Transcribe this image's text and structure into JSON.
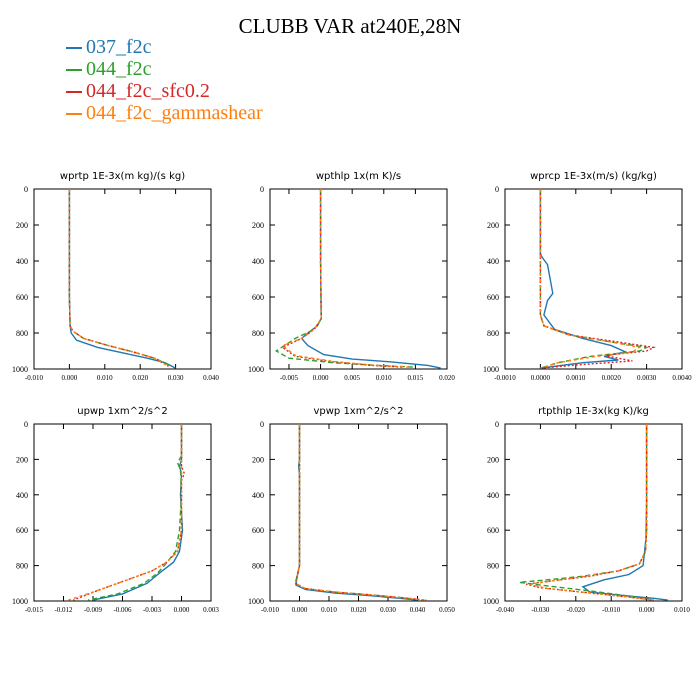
{
  "figure": {
    "title": "CLUBB VAR at240E,28N"
  },
  "legend": [
    {
      "label": "037_f2c",
      "color": "#1f77b4"
    },
    {
      "label": "044_f2c",
      "color": "#2ca02c"
    },
    {
      "label": "044_f2c_sfc0.2",
      "color": "#d62728"
    },
    {
      "label": "044_f2c_gammashear",
      "color": "#ff7f0e"
    }
  ],
  "chart_data": [
    {
      "type": "line",
      "title": "wprtp  1E-3x(m kg)/(s kg)",
      "xlim": [
        -0.01,
        0.04
      ],
      "ylim": [
        0,
        1000
      ],
      "y_inverted": true,
      "xticks": [
        "-0.010",
        "0.000",
        "0.010",
        "0.020",
        "0.030",
        "0.040"
      ],
      "xtick_values": [
        -0.01,
        0.0,
        0.01,
        0.02,
        0.03,
        0.04
      ],
      "yticks": [
        0,
        200,
        400,
        600,
        800,
        1000
      ],
      "series": [
        {
          "name": "037_f2c",
          "color": "#1f77b4",
          "dash": "",
          "x": [
            0,
            0,
            0.0002,
            0.0005,
            0.002,
            0.008,
            0.015,
            0.022,
            0.027,
            0.03
          ],
          "y": [
            0,
            600,
            760,
            800,
            840,
            880,
            910,
            940,
            965,
            995
          ]
        },
        {
          "name": "044_f2c",
          "color": "#2ca02c",
          "dash": "5,3",
          "x": [
            0,
            0,
            0.0002,
            0.001,
            0.004,
            0.011,
            0.018,
            0.024,
            0.029
          ],
          "y": [
            0,
            600,
            760,
            790,
            830,
            870,
            905,
            940,
            985
          ]
        },
        {
          "name": "044_f2c_sfc0.2",
          "color": "#d62728",
          "dash": "2,2",
          "x": [
            0,
            0,
            0.0002,
            0.001,
            0.004,
            0.011,
            0.018,
            0.024,
            0.028
          ],
          "y": [
            0,
            600,
            760,
            790,
            830,
            870,
            905,
            940,
            985
          ]
        },
        {
          "name": "044_f2c_gammashear",
          "color": "#ff7f0e",
          "dash": "3,3",
          "x": [
            0,
            0,
            0.0002,
            0.001,
            0.004,
            0.011,
            0.018,
            0.024,
            0.028
          ],
          "y": [
            0,
            600,
            760,
            790,
            830,
            870,
            905,
            940,
            985
          ]
        }
      ]
    },
    {
      "type": "line",
      "title": "wpthlp  1x(m K)/s",
      "xlim": [
        -0.008,
        0.02
      ],
      "ylim": [
        0,
        1000
      ],
      "y_inverted": true,
      "xticks": [
        "-0.005",
        "0.000",
        "0.005",
        "0.010",
        "0.015",
        "0.020"
      ],
      "xtick_values": [
        -0.005,
        0.0,
        0.005,
        0.01,
        0.015,
        0.02
      ],
      "yticks": [
        0,
        200,
        400,
        600,
        800,
        1000
      ],
      "series": [
        {
          "name": "037_f2c",
          "color": "#1f77b4",
          "dash": "",
          "x": [
            0,
            0,
            0.0001,
            -0.0005,
            -0.002,
            -0.003,
            -0.002,
            0.0005,
            0.005,
            0.011,
            0.017,
            0.019
          ],
          "y": [
            0,
            400,
            720,
            760,
            800,
            830,
            870,
            920,
            945,
            960,
            980,
            995
          ]
        },
        {
          "name": "044_f2c",
          "color": "#2ca02c",
          "dash": "5,3",
          "x": [
            0,
            0,
            0.0001,
            -0.001,
            -0.004,
            -0.007,
            -0.005,
            0.002,
            0.009,
            0.015
          ],
          "y": [
            0,
            400,
            720,
            780,
            830,
            900,
            940,
            965,
            980,
            990
          ]
        },
        {
          "name": "044_f2c_sfc0.2",
          "color": "#d62728",
          "dash": "2,2",
          "x": [
            0,
            0,
            0.0001,
            -0.001,
            -0.003,
            -0.006,
            -0.004,
            0.002,
            0.008,
            0.013
          ],
          "y": [
            0,
            400,
            720,
            780,
            830,
            880,
            930,
            960,
            980,
            990
          ]
        },
        {
          "name": "044_f2c_gammashear",
          "color": "#ff7f0e",
          "dash": "3,3",
          "x": [
            0,
            0,
            0.0001,
            -0.001,
            -0.003,
            -0.006,
            -0.004,
            0.002,
            0.008,
            0.014
          ],
          "y": [
            0,
            400,
            720,
            780,
            830,
            870,
            925,
            958,
            978,
            990
          ]
        }
      ]
    },
    {
      "type": "line",
      "title": "wprcp  1E-3x(m/s) (kg/kg)",
      "xlim": [
        -0.001,
        0.004
      ],
      "ylim": [
        0,
        1000
      ],
      "y_inverted": true,
      "xticks": [
        "-0.0010",
        "0.0000",
        "0.0010",
        "0.0020",
        "0.0030",
        "0.0040"
      ],
      "xtick_values": [
        -0.001,
        0.0,
        0.001,
        0.002,
        0.003,
        0.004
      ],
      "yticks": [
        0,
        200,
        400,
        600,
        800,
        1000
      ],
      "series": [
        {
          "name": "037_f2c",
          "color": "#1f77b4",
          "dash": "",
          "x": [
            0,
            0,
            5e-05,
            0.0002,
            0.00035,
            0.0002,
            0.0001,
            0.0004,
            0.0012,
            0.002,
            0.0024,
            0.0018,
            0.0022,
            0.0012,
            0.0004,
            0
          ],
          "y": [
            0,
            360,
            380,
            420,
            580,
            620,
            700,
            780,
            830,
            870,
            905,
            930,
            950,
            965,
            985,
            995
          ]
        },
        {
          "name": "044_f2c",
          "color": "#2ca02c",
          "dash": "5,3",
          "x": [
            0,
            0,
            0,
            0.0001,
            0.0008,
            0.002,
            0.003,
            0.0028,
            0.0014,
            0.0005,
            0
          ],
          "y": [
            0,
            400,
            700,
            760,
            810,
            850,
            880,
            900,
            930,
            965,
            995
          ]
        },
        {
          "name": "044_f2c_sfc0.2",
          "color": "#d62728",
          "dash": "2,2",
          "x": [
            0,
            0,
            0,
            0.0001,
            0.0008,
            0.0022,
            0.0032,
            0.003,
            0.0018,
            0.0026,
            0.0012,
            0.0003,
            0
          ],
          "y": [
            0,
            400,
            700,
            760,
            810,
            850,
            880,
            900,
            925,
            955,
            975,
            990,
            995
          ]
        },
        {
          "name": "044_f2c_gammashear",
          "color": "#ff7f0e",
          "dash": "3,3",
          "x": [
            0,
            0,
            0,
            0.0001,
            0.0008,
            0.002,
            0.0028,
            0.0026,
            0.0014,
            0.0005,
            0
          ],
          "y": [
            0,
            400,
            700,
            760,
            810,
            850,
            880,
            905,
            935,
            965,
            995
          ]
        }
      ]
    },
    {
      "type": "line",
      "title": "upwp  1xm^2/s^2",
      "xlim": [
        -0.015,
        0.003
      ],
      "ylim": [
        0,
        1000
      ],
      "y_inverted": true,
      "xticks": [
        "-0.015",
        "-0.012",
        "-0.009",
        "-0.006",
        "-0.003",
        "0.000",
        "0.003"
      ],
      "xtick_values": [
        -0.015,
        -0.012,
        -0.009,
        -0.006,
        -0.003,
        0.0,
        0.003
      ],
      "yticks": [
        0,
        200,
        400,
        600,
        800,
        1000
      ],
      "series": [
        {
          "name": "037_f2c",
          "color": "#1f77b4",
          "dash": "",
          "x": [
            0,
            0,
            -0.0002,
            0,
            -0.0001,
            0.0001,
            -0.0002,
            -0.0008,
            -0.0022,
            -0.0035,
            -0.006,
            -0.009
          ],
          "y": [
            0,
            200,
            240,
            280,
            400,
            600,
            720,
            780,
            840,
            900,
            960,
            995
          ]
        },
        {
          "name": "044_f2c",
          "color": "#2ca02c",
          "dash": "5,3",
          "x": [
            0,
            0,
            -0.0004,
            -0.0001,
            0,
            -0.0002,
            -0.0006,
            -0.0016,
            -0.0024,
            -0.0038,
            -0.0065,
            -0.0095
          ],
          "y": [
            0,
            180,
            220,
            260,
            400,
            600,
            720,
            790,
            840,
            900,
            960,
            995
          ]
        },
        {
          "name": "044_f2c_sfc0.2",
          "color": "#d62728",
          "dash": "2,2",
          "x": [
            0,
            0,
            0.0003,
            0,
            0,
            -0.0004,
            -0.0015,
            -0.003,
            -0.0055,
            -0.0085,
            -0.011
          ],
          "y": [
            0,
            240,
            280,
            320,
            600,
            720,
            780,
            830,
            880,
            940,
            995
          ]
        },
        {
          "name": "044_f2c_gammashear",
          "color": "#ff7f0e",
          "dash": "3,3",
          "x": [
            0,
            0,
            0,
            -0.0004,
            -0.0015,
            -0.003,
            -0.0055,
            -0.0085,
            -0.0115
          ],
          "y": [
            0,
            300,
            600,
            720,
            780,
            830,
            880,
            940,
            995
          ]
        }
      ]
    },
    {
      "type": "line",
      "title": "vpwp  1xm^2/s^2",
      "xlim": [
        -0.01,
        0.05
      ],
      "ylim": [
        0,
        1000
      ],
      "y_inverted": true,
      "xticks": [
        "-0.010",
        "0.000",
        "0.010",
        "0.020",
        "0.030",
        "0.040",
        "0.050"
      ],
      "xtick_values": [
        -0.01,
        0.0,
        0.01,
        0.02,
        0.03,
        0.04,
        0.05
      ],
      "yticks": [
        0,
        200,
        400,
        600,
        800,
        1000
      ],
      "series": [
        {
          "name": "037_f2c",
          "color": "#1f77b4",
          "dash": "",
          "x": [
            0,
            0,
            -0.0003,
            0,
            0,
            -0.001,
            -0.0012,
            0.002,
            0.012,
            0.024,
            0.034,
            0.04
          ],
          "y": [
            0,
            200,
            240,
            280,
            800,
            880,
            910,
            935,
            955,
            970,
            985,
            995
          ]
        },
        {
          "name": "044_f2c",
          "color": "#2ca02c",
          "dash": "5,3",
          "x": [
            0,
            0,
            -0.001,
            -0.0015,
            0.002,
            0.012,
            0.024,
            0.034,
            0.042
          ],
          "y": [
            0,
            800,
            870,
            900,
            930,
            950,
            965,
            980,
            995
          ]
        },
        {
          "name": "044_f2c_sfc0.2",
          "color": "#d62728",
          "dash": "2,2",
          "x": [
            0,
            0,
            -0.001,
            -0.0015,
            0.002,
            0.012,
            0.024,
            0.034,
            0.043
          ],
          "y": [
            0,
            800,
            870,
            900,
            930,
            950,
            965,
            980,
            995
          ]
        },
        {
          "name": "044_f2c_gammashear",
          "color": "#ff7f0e",
          "dash": "3,3",
          "x": [
            0,
            0,
            -0.001,
            -0.0015,
            0.002,
            0.012,
            0.024,
            0.034,
            0.043
          ],
          "y": [
            0,
            800,
            870,
            900,
            930,
            950,
            965,
            980,
            995
          ]
        }
      ]
    },
    {
      "type": "line",
      "title": "rtpthlp  1E-3x(kg K)/kg",
      "xlim": [
        -0.04,
        0.01
      ],
      "ylim": [
        0,
        1000
      ],
      "y_inverted": true,
      "xticks": [
        "-0.040",
        "-0.030",
        "-0.020",
        "-0.010",
        "0.000",
        "0.010"
      ],
      "xtick_values": [
        -0.04,
        -0.03,
        -0.02,
        -0.01,
        0.0,
        0.01
      ],
      "yticks": [
        0,
        200,
        400,
        600,
        800,
        1000
      ],
      "series": [
        {
          "name": "037_f2c",
          "color": "#1f77b4",
          "dash": "",
          "x": [
            0,
            0,
            -0.0002,
            -0.001,
            -0.005,
            -0.012,
            -0.018,
            -0.016,
            -0.006,
            0.002,
            0.006
          ],
          "y": [
            0,
            450,
            650,
            800,
            850,
            880,
            920,
            950,
            970,
            985,
            995
          ]
        },
        {
          "name": "044_f2c",
          "color": "#2ca02c",
          "dash": "5,3",
          "x": [
            0,
            0,
            -0.0003,
            -0.002,
            -0.008,
            -0.018,
            -0.028,
            -0.036,
            -0.03,
            -0.015,
            -0.004,
            0.002
          ],
          "y": [
            0,
            600,
            720,
            790,
            830,
            860,
            880,
            895,
            910,
            945,
            975,
            995
          ]
        },
        {
          "name": "044_f2c_sfc0.2",
          "color": "#d62728",
          "dash": "2,2",
          "x": [
            0,
            0,
            -0.0003,
            -0.002,
            -0.008,
            -0.016,
            -0.026,
            -0.034,
            -0.03,
            -0.016,
            -0.004,
            0.002
          ],
          "y": [
            0,
            600,
            720,
            790,
            830,
            860,
            885,
            905,
            925,
            955,
            980,
            995
          ]
        },
        {
          "name": "044_f2c_gammashear",
          "color": "#ff7f0e",
          "dash": "3,3",
          "x": [
            0,
            0,
            -0.0003,
            -0.002,
            -0.008,
            -0.017,
            -0.026,
            -0.033,
            -0.028,
            -0.014,
            -0.004,
            0.002
          ],
          "y": [
            0,
            600,
            720,
            790,
            830,
            860,
            885,
            905,
            930,
            958,
            980,
            995
          ]
        }
      ]
    }
  ]
}
